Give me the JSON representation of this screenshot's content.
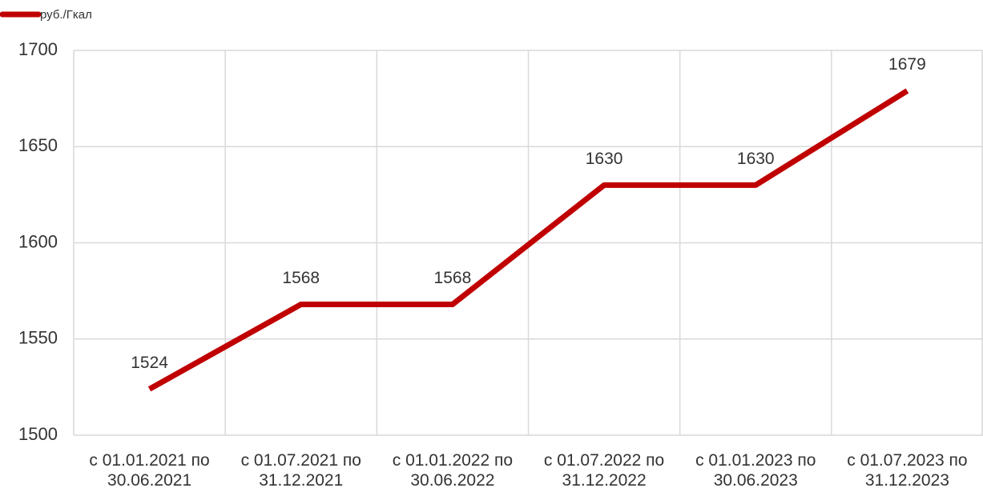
{
  "chart_data": {
    "type": "line",
    "categories": [
      "с 01.01.2021 по 30.06.2021",
      "с 01.07.2021 по 31.12.2021",
      "с 01.01.2022 по 30.06.2022",
      "с 01.07.2022 по 31.12.2022",
      "с 01.01.2023 по 30.06.2023",
      "с 01.07.2023 по 31.12.2023"
    ],
    "series": [
      {
        "name": "руб./Гкал",
        "color": "#c00000",
        "values": [
          1524,
          1568,
          1568,
          1630,
          1630,
          1679
        ]
      }
    ],
    "ylim": [
      1500,
      1700
    ],
    "yticks": [
      1500,
      1550,
      1600,
      1650,
      1700
    ],
    "grid": true,
    "legend": "top-left"
  }
}
